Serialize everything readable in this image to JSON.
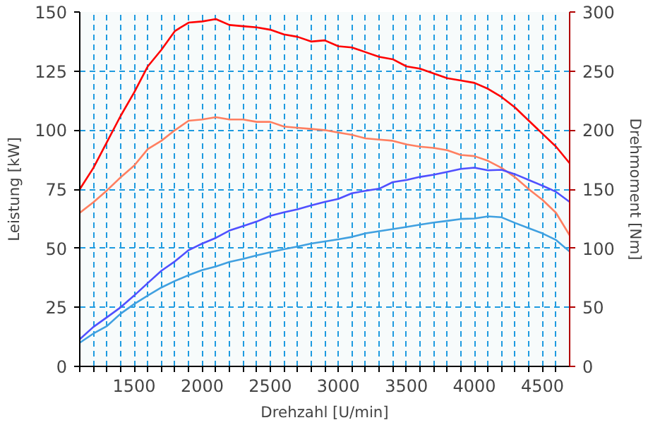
{
  "chart_data": {
    "type": "line",
    "xlabel": "Drehzahl [U/min]",
    "ylabel": "Leistung [kW]",
    "y2label": "Drehmoment [Nm]",
    "x": [
      1100,
      1200,
      1300,
      1400,
      1500,
      1600,
      1700,
      1800,
      1900,
      2000,
      2100,
      2200,
      2300,
      2400,
      2500,
      2600,
      2700,
      2800,
      2900,
      3000,
      3100,
      3200,
      3300,
      3400,
      3500,
      3600,
      3700,
      3800,
      3900,
      4000,
      4100,
      4200,
      4300,
      4400,
      4500,
      4600,
      4700
    ],
    "series": [
      {
        "color": "#ff0000",
        "axis": "y2",
        "values": [
          150,
          168,
          190,
          212,
          232,
          254,
          268,
          284,
          291,
          292,
          294,
          289,
          288,
          287,
          285,
          281,
          279,
          275,
          276,
          271,
          270,
          266,
          262,
          260,
          254,
          252,
          248,
          244,
          242,
          240,
          235,
          228,
          219,
          208,
          197,
          186,
          172
        ]
      },
      {
        "color": "#ff7f60",
        "axis": "y2",
        "values": [
          130,
          139,
          149,
          160,
          170,
          184,
          191,
          200,
          208,
          209,
          211,
          209,
          209,
          207,
          207,
          203,
          202,
          201,
          200,
          198,
          196,
          193,
          192,
          191,
          188,
          186,
          185,
          183,
          179,
          178,
          174,
          168,
          160,
          150,
          141,
          130,
          111
        ]
      },
      {
        "color": "#5050ff",
        "values": [
          11.5,
          16.7,
          20.8,
          25,
          30,
          35.3,
          40.5,
          44.5,
          49.2,
          52,
          54.4,
          57.5,
          59.4,
          61.3,
          63.7,
          65.2,
          66.5,
          68.1,
          69.6,
          70.9,
          73.3,
          74.3,
          75.2,
          78,
          78.9,
          80.2,
          81.1,
          82.3,
          83.6,
          84.1,
          83,
          83.2,
          81.3,
          78.9,
          76.5,
          73.9,
          69.6
        ]
      },
      {
        "color": "#40a0e0",
        "values": [
          10,
          13.9,
          17.1,
          22.3,
          26.4,
          30,
          33.4,
          36.2,
          38.6,
          40.8,
          42.3,
          44.2,
          45.5,
          47,
          48.3,
          49.6,
          50.7,
          52,
          52.9,
          53.8,
          54.8,
          56.3,
          57.2,
          58.1,
          59,
          60,
          60.9,
          61.6,
          62.4,
          62.6,
          63.5,
          63.1,
          60.7,
          58.5,
          56.3,
          53.5,
          48.6
        ]
      }
    ],
    "xlim": [
      1100,
      4700
    ],
    "xticks": [
      {
        "value": 1100,
        "label": null
      },
      {
        "value": 1200,
        "label": null
      },
      {
        "value": 1300,
        "label": null
      },
      {
        "value": 1400,
        "label": null
      },
      1500,
      {
        "value": 1600,
        "label": null
      },
      {
        "value": 1700,
        "label": null
      },
      {
        "value": 1800,
        "label": null
      },
      {
        "value": 1900,
        "label": null
      },
      2000,
      {
        "value": 2100,
        "label": null
      },
      {
        "value": 2200,
        "label": null
      },
      {
        "value": 2300,
        "label": null
      },
      {
        "value": 2400,
        "label": null
      },
      2500,
      {
        "value": 2600,
        "label": null
      },
      {
        "value": 2700,
        "label": null
      },
      {
        "value": 2800,
        "label": null
      },
      {
        "value": 2900,
        "label": null
      },
      3000,
      {
        "value": 3100,
        "label": null
      },
      {
        "value": 3200,
        "label": null
      },
      {
        "value": 3300,
        "label": null
      },
      {
        "value": 3400,
        "label": null
      },
      3500,
      {
        "value": 3600,
        "label": null
      },
      {
        "value": 3700,
        "label": null
      },
      {
        "value": 3800,
        "label": null
      },
      {
        "value": 3900,
        "label": null
      },
      4000,
      {
        "value": 4100,
        "label": null
      },
      {
        "value": 4200,
        "label": null
      },
      {
        "value": 4300,
        "label": null
      },
      {
        "value": 4400,
        "label": null
      },
      4500,
      {
        "value": 4600,
        "label": null
      }
    ],
    "ylim": [
      0,
      150
    ],
    "yticks": [
      0,
      25,
      50,
      75,
      100,
      125,
      150
    ],
    "y2lim": [
      0,
      300
    ],
    "y2ticks": [
      0,
      50,
      100,
      150,
      200,
      250,
      300
    ],
    "grid": true,
    "marker": "none",
    "line_style": "solid"
  }
}
